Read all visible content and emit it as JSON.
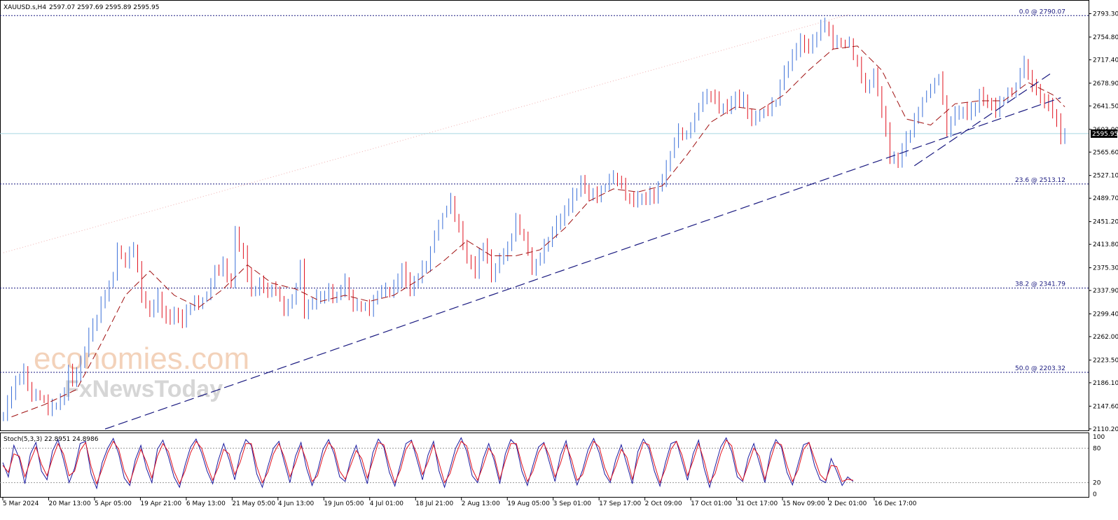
{
  "header": {
    "symbol": "XAUUSD.s,H4",
    "ohlc": "2597.07 2597.69 2595.89 2595.95"
  },
  "watermark": {
    "line1": "economies.com",
    "line2": "FxNewsToday"
  },
  "colors": {
    "bull": "#3a6fd8",
    "bear": "#e0121f",
    "fib": "#1a1a80",
    "ma": "#a01010",
    "trend": "#1a1a80",
    "current": "#a6d8e0",
    "stoch_main": "#1a1aa0",
    "stoch_signal": "#e0121f"
  },
  "chart_data": [
    {
      "type": "candlestick",
      "title": "XAUUSD.s,H4",
      "ylim": [
        2110,
        2810
      ],
      "y_ticks": [
        "2793.30",
        "2754.80",
        "2717.40",
        "2678.90",
        "2641.50",
        "2603.00",
        "2565.60",
        "2527.10",
        "2489.70",
        "2451.20",
        "2413.80",
        "2375.30",
        "2337.90",
        "2299.40",
        "2262.00",
        "2223.50",
        "2186.10",
        "2147.60",
        "2110.20"
      ],
      "x_ticks": [
        "5 Mar 2024",
        "20 Mar 13:00",
        "5 Apr 05:00",
        "19 Apr 21:00",
        "6 May 13:00",
        "21 May 05:00",
        "4 Jun 13:00",
        "19 Jun 05:00",
        "4 Jul 01:00",
        "18 Jul 21:00",
        "2 Aug 13:00",
        "19 Aug 05:00",
        "3 Sep 01:00",
        "17 Sep 17:00",
        "2 Oct 09:00",
        "17 Oct 01:00",
        "31 Oct 17:00",
        "15 Nov 09:00",
        "2 Dec 01:00",
        "16 Dec 17:00"
      ],
      "current_price": 2595.95,
      "current_label": "2595.95",
      "fibonacci": [
        {
          "label": "0.0 @ 2790.07",
          "value": 2790.07
        },
        {
          "label": "23.6 @ 2513.12",
          "value": 2513.12
        },
        {
          "label": "38.2 @ 2341.79",
          "value": 2341.79
        },
        {
          "label": "50.0 @ 2203.32",
          "value": 2203.32
        }
      ],
      "close_path": [
        [
          0,
          2135
        ],
        [
          3,
          2180
        ],
        [
          5,
          2195
        ],
        [
          7,
          2160
        ],
        [
          9,
          2170
        ],
        [
          11,
          2150
        ],
        [
          13,
          2158
        ],
        [
          15,
          2165
        ],
        [
          16,
          2208
        ],
        [
          17,
          2180
        ],
        [
          19,
          2210
        ],
        [
          21,
          2260
        ],
        [
          23,
          2300
        ],
        [
          25,
          2340
        ],
        [
          27,
          2370
        ],
        [
          28,
          2410
        ],
        [
          30,
          2380
        ],
        [
          31,
          2390
        ],
        [
          32,
          2405
        ],
        [
          34,
          2320
        ],
        [
          36,
          2300
        ],
        [
          38,
          2330
        ],
        [
          40,
          2300
        ],
        [
          42,
          2310
        ],
        [
          44,
          2290
        ],
        [
          46,
          2310
        ],
        [
          48,
          2305
        ],
        [
          50,
          2320
        ],
        [
          52,
          2370
        ],
        [
          54,
          2385
        ],
        [
          56,
          2360
        ],
        [
          57,
          2440
        ],
        [
          59,
          2400
        ],
        [
          61,
          2330
        ],
        [
          63,
          2340
        ],
        [
          65,
          2330
        ],
        [
          67,
          2340
        ],
        [
          69,
          2310
        ],
        [
          71,
          2330
        ],
        [
          73,
          2380
        ],
        [
          74,
          2305
        ],
        [
          76,
          2315
        ],
        [
          78,
          2320
        ],
        [
          80,
          2330
        ],
        [
          82,
          2330
        ],
        [
          84,
          2360
        ],
        [
          86,
          2320
        ],
        [
          88,
          2315
        ],
        [
          90,
          2300
        ],
        [
          92,
          2325
        ],
        [
          94,
          2330
        ],
        [
          96,
          2340
        ],
        [
          98,
          2380
        ],
        [
          100,
          2350
        ],
        [
          102,
          2370
        ],
        [
          104,
          2380
        ],
        [
          106,
          2420
        ],
        [
          108,
          2450
        ],
        [
          110,
          2478
        ],
        [
          112,
          2440
        ],
        [
          114,
          2400
        ],
        [
          116,
          2380
        ],
        [
          118,
          2420
        ],
        [
          120,
          2360
        ],
        [
          122,
          2380
        ],
        [
          124,
          2400
        ],
        [
          126,
          2450
        ],
        [
          128,
          2430
        ],
        [
          130,
          2380
        ],
        [
          132,
          2400
        ],
        [
          134,
          2420
        ],
        [
          136,
          2440
        ],
        [
          138,
          2460
        ],
        [
          140,
          2490
        ],
        [
          142,
          2520
        ],
        [
          144,
          2505
        ],
        [
          146,
          2500
        ],
        [
          148,
          2510
        ],
        [
          150,
          2520
        ],
        [
          152,
          2500
        ],
        [
          154,
          2480
        ],
        [
          156,
          2490
        ],
        [
          158,
          2500
        ],
        [
          160,
          2505
        ],
        [
          162,
          2525
        ],
        [
          164,
          2560
        ],
        [
          166,
          2590
        ],
        [
          168,
          2580
        ],
        [
          170,
          2620
        ],
        [
          172,
          2660
        ],
        [
          174,
          2670
        ],
        [
          176,
          2650
        ],
        [
          178,
          2640
        ],
        [
          180,
          2650
        ],
        [
          182,
          2640
        ],
        [
          184,
          2610
        ],
        [
          186,
          2630
        ],
        [
          188,
          2640
        ],
        [
          190,
          2660
        ],
        [
          192,
          2700
        ],
        [
          194,
          2720
        ],
        [
          196,
          2740
        ],
        [
          198,
          2730
        ],
        [
          200,
          2760
        ],
        [
          202,
          2785
        ],
        [
          204,
          2755
        ],
        [
          206,
          2750
        ],
        [
          208,
          2740
        ],
        [
          210,
          2700
        ],
        [
          212,
          2660
        ],
        [
          214,
          2690
        ],
        [
          216,
          2640
        ],
        [
          218,
          2570
        ],
        [
          220,
          2560
        ],
        [
          222,
          2590
        ],
        [
          224,
          2610
        ],
        [
          226,
          2640
        ],
        [
          228,
          2660
        ],
        [
          230,
          2690
        ],
        [
          232,
          2610
        ],
        [
          234,
          2640
        ],
        [
          236,
          2640
        ],
        [
          238,
          2630
        ],
        [
          240,
          2650
        ],
        [
          242,
          2640
        ],
        [
          244,
          2630
        ],
        [
          246,
          2660
        ],
        [
          248,
          2670
        ],
        [
          250,
          2700
        ],
        [
          251,
          2720
        ],
        [
          252,
          2690
        ],
        [
          254,
          2660
        ],
        [
          256,
          2640
        ],
        [
          258,
          2630
        ],
        [
          260,
          2595
        ]
      ],
      "moving_average_path": [
        [
          2,
          2130
        ],
        [
          10,
          2150
        ],
        [
          18,
          2175
        ],
        [
          24,
          2250
        ],
        [
          30,
          2330
        ],
        [
          36,
          2370
        ],
        [
          42,
          2330
        ],
        [
          48,
          2310
        ],
        [
          54,
          2340
        ],
        [
          60,
          2380
        ],
        [
          66,
          2350
        ],
        [
          72,
          2340
        ],
        [
          78,
          2320
        ],
        [
          84,
          2330
        ],
        [
          90,
          2320
        ],
        [
          96,
          2330
        ],
        [
          102,
          2355
        ],
        [
          108,
          2385
        ],
        [
          114,
          2420
        ],
        [
          120,
          2395
        ],
        [
          126,
          2395
        ],
        [
          132,
          2405
        ],
        [
          138,
          2440
        ],
        [
          144,
          2485
        ],
        [
          150,
          2505
        ],
        [
          156,
          2500
        ],
        [
          162,
          2510
        ],
        [
          168,
          2560
        ],
        [
          174,
          2615
        ],
        [
          180,
          2640
        ],
        [
          186,
          2635
        ],
        [
          192,
          2660
        ],
        [
          198,
          2700
        ],
        [
          204,
          2735
        ],
        [
          210,
          2740
        ],
        [
          216,
          2700
        ],
        [
          222,
          2620
        ],
        [
          228,
          2610
        ],
        [
          234,
          2645
        ],
        [
          240,
          2650
        ],
        [
          246,
          2650
        ],
        [
          252,
          2680
        ],
        [
          258,
          2660
        ],
        [
          261,
          2640
        ]
      ],
      "trendlines": [
        {
          "from": [
            25,
            2110
          ],
          "to": [
            260,
            2655
          ]
        },
        {
          "from": [
            224,
            2543
          ],
          "to": [
            258,
            2697
          ]
        }
      ],
      "dotted_line": {
        "from": [
          0,
          2400
        ],
        "to": [
          208,
          2792
        ]
      }
    },
    {
      "type": "line",
      "title": "Stoch(5,3,3) 22.8951 24.8986",
      "ylim": [
        0,
        100
      ],
      "y_ticks": [
        "100",
        "80",
        "20",
        "0"
      ],
      "levels": [
        80,
        20
      ],
      "series": [
        {
          "name": "main",
          "values": [
            55,
            30,
            85,
            62,
            18,
            70,
            90,
            40,
            25,
            75,
            95,
            60,
            20,
            45,
            88,
            92,
            35,
            10,
            55,
            80,
            97,
            70,
            28,
            15,
            60,
            85,
            45,
            20,
            78,
            94,
            65,
            30,
            12,
            50,
            82,
            96,
            72,
            40,
            18,
            58,
            88,
            60,
            25,
            70,
            95,
            85,
            35,
            12,
            48,
            80,
            92,
            55,
            20,
            66,
            90,
            45,
            15,
            40,
            78,
            95,
            70,
            30,
            22,
            60,
            85,
            50,
            18,
            72,
            96,
            82,
            38,
            14,
            52,
            88,
            94,
            60,
            25,
            68,
            92,
            40,
            12,
            45,
            80,
            98,
            75,
            32,
            20,
            62,
            88,
            58,
            18,
            70,
            95,
            85,
            40,
            15,
            50,
            82,
            90,
            55,
            22,
            68,
            93,
            48,
            16,
            42,
            78,
            97,
            72,
            35,
            20,
            60,
            86,
            52,
            18,
            74,
            96,
            80,
            40,
            14,
            55,
            88,
            92,
            58,
            24,
            70,
            94,
            45,
            12,
            48,
            82,
            98,
            74,
            30,
            22,
            64,
            88,
            55,
            20,
            72,
            95,
            82,
            38,
            16,
            52,
            86,
            90,
            50,
            25,
            20,
            62,
            40,
            15,
            30,
            22
          ]
        },
        {
          "name": "signal",
          "values": [
            50,
            38,
            70,
            66,
            30,
            58,
            82,
            52,
            32,
            62,
            88,
            70,
            32,
            40,
            76,
            90,
            48,
            18,
            44,
            72,
            92,
            78,
            40,
            20,
            50,
            78,
            56,
            28,
            66,
            88,
            74,
            40,
            18,
            40,
            72,
            92,
            80,
            50,
            24,
            46,
            78,
            70,
            34,
            56,
            88,
            88,
            48,
            20,
            38,
            70,
            88,
            64,
            30,
            54,
            84,
            58,
            22,
            32,
            66,
            90,
            78,
            40,
            26,
            50,
            76,
            62,
            28,
            58,
            90,
            86,
            50,
            20,
            42,
            78,
            92,
            70,
            34,
            56,
            86,
            54,
            20,
            36,
            68,
            92,
            84,
            44,
            24,
            50,
            80,
            66,
            26,
            58,
            88,
            88,
            52,
            22,
            40,
            72,
            88,
            66,
            30,
            54,
            86,
            60,
            24,
            34,
            66,
            92,
            82,
            46,
            24,
            48,
            78,
            64,
            26,
            60,
            90,
            86,
            52,
            20,
            44,
            78,
            92,
            68,
            32,
            58,
            88,
            58,
            20,
            36,
            70,
            94,
            84,
            40,
            24,
            52,
            80,
            66,
            26,
            60,
            90,
            86,
            50,
            22,
            42,
            78,
            90,
            62,
            34,
            24,
            50,
            48,
            22,
            26,
            24
          ]
        }
      ]
    }
  ]
}
